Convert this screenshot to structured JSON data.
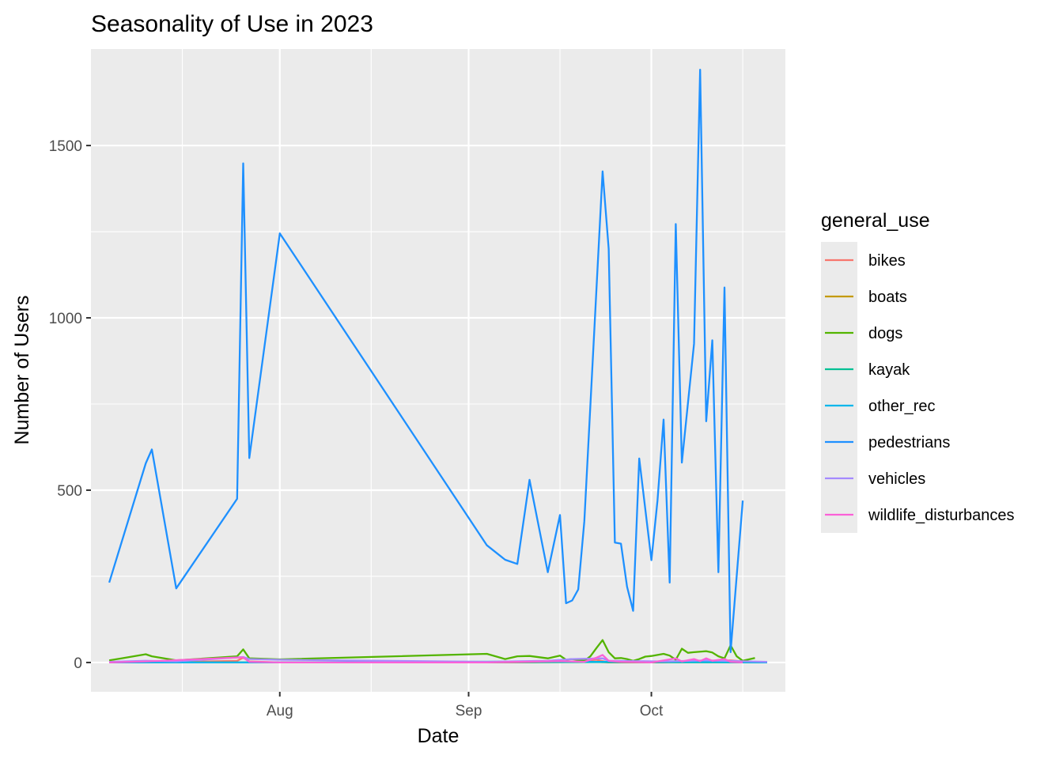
{
  "chart_data": {
    "type": "line",
    "title": "Seasonality of Use in 2023",
    "xlabel": "Date",
    "ylabel": "Number of Users",
    "x_ticks": [
      {
        "date": "2023-08-01",
        "label": "Aug"
      },
      {
        "date": "2023-09-01",
        "label": "Sep"
      },
      {
        "date": "2023-10-01",
        "label": "Oct"
      }
    ],
    "y_ticks": [
      0,
      500,
      1000,
      1500
    ],
    "xlim": [
      "2023-07-01",
      "2023-10-23"
    ],
    "ylim": [
      -85,
      1780
    ],
    "grid": true,
    "legend": {
      "title": "general_use",
      "position": "right"
    },
    "series": [
      {
        "name": "bikes",
        "color": "#F8766D",
        "points": [
          [
            "2023-07-04",
            0
          ],
          [
            "2023-07-10",
            2
          ],
          [
            "2023-07-15",
            1
          ],
          [
            "2023-07-25",
            5
          ],
          [
            "2023-07-26",
            14
          ],
          [
            "2023-07-27",
            3
          ],
          [
            "2023-08-01",
            0
          ],
          [
            "2023-09-04",
            0
          ],
          [
            "2023-09-12",
            1
          ],
          [
            "2023-09-18",
            3
          ],
          [
            "2023-09-22",
            8
          ],
          [
            "2023-09-24",
            0
          ],
          [
            "2023-10-03",
            0
          ],
          [
            "2023-10-05",
            3
          ],
          [
            "2023-10-08",
            5
          ],
          [
            "2023-10-11",
            4
          ],
          [
            "2023-10-14",
            6
          ],
          [
            "2023-10-17",
            2
          ],
          [
            "2023-10-20",
            0
          ]
        ]
      },
      {
        "name": "boats",
        "color": "#C49A00",
        "points": [
          [
            "2023-07-04",
            0
          ],
          [
            "2023-07-26",
            0
          ],
          [
            "2023-08-01",
            0
          ],
          [
            "2023-09-04",
            0
          ],
          [
            "2023-09-22",
            2
          ],
          [
            "2023-09-24",
            0
          ],
          [
            "2023-10-08",
            1
          ],
          [
            "2023-10-12",
            2
          ],
          [
            "2023-10-20",
            0
          ]
        ]
      },
      {
        "name": "dogs",
        "color": "#53B400",
        "points": [
          [
            "2023-07-04",
            6
          ],
          [
            "2023-07-06",
            12
          ],
          [
            "2023-07-10",
            24
          ],
          [
            "2023-07-11",
            18
          ],
          [
            "2023-07-15",
            6
          ],
          [
            "2023-07-25",
            18
          ],
          [
            "2023-07-26",
            38
          ],
          [
            "2023-07-27",
            12
          ],
          [
            "2023-08-01",
            9
          ],
          [
            "2023-09-04",
            25
          ],
          [
            "2023-09-07",
            10
          ],
          [
            "2023-09-09",
            18
          ],
          [
            "2023-09-11",
            19
          ],
          [
            "2023-09-14",
            12
          ],
          [
            "2023-09-16",
            20
          ],
          [
            "2023-09-17",
            8
          ],
          [
            "2023-09-18",
            10
          ],
          [
            "2023-09-19",
            8
          ],
          [
            "2023-09-20",
            5
          ],
          [
            "2023-09-21",
            18
          ],
          [
            "2023-09-22",
            42
          ],
          [
            "2023-09-23",
            65
          ],
          [
            "2023-09-24",
            30
          ],
          [
            "2023-09-25",
            12
          ],
          [
            "2023-09-26",
            13
          ],
          [
            "2023-09-27",
            10
          ],
          [
            "2023-09-28",
            5
          ],
          [
            "2023-09-29",
            10
          ],
          [
            "2023-09-30",
            17
          ],
          [
            "2023-10-01",
            19
          ],
          [
            "2023-10-02",
            22
          ],
          [
            "2023-10-03",
            25
          ],
          [
            "2023-10-04",
            20
          ],
          [
            "2023-10-05",
            8
          ],
          [
            "2023-10-06",
            40
          ],
          [
            "2023-10-07",
            28
          ],
          [
            "2023-10-08",
            30
          ],
          [
            "2023-10-10",
            33
          ],
          [
            "2023-10-11",
            29
          ],
          [
            "2023-10-12",
            18
          ],
          [
            "2023-10-13",
            12
          ],
          [
            "2023-10-14",
            50
          ],
          [
            "2023-10-15",
            18
          ],
          [
            "2023-10-16",
            5
          ],
          [
            "2023-10-18",
            13
          ]
        ]
      },
      {
        "name": "kayak",
        "color": "#00C094",
        "points": [
          [
            "2023-07-04",
            0
          ],
          [
            "2023-08-01",
            0
          ],
          [
            "2023-09-22",
            1
          ],
          [
            "2023-10-20",
            0
          ]
        ]
      },
      {
        "name": "other_rec",
        "color": "#00B6EB",
        "points": [
          [
            "2023-07-04",
            0
          ],
          [
            "2023-08-01",
            0
          ],
          [
            "2023-09-15",
            3
          ],
          [
            "2023-09-22",
            2
          ],
          [
            "2023-10-10",
            2
          ],
          [
            "2023-10-20",
            0
          ]
        ]
      },
      {
        "name": "pedestrians",
        "color": "#1E90FF",
        "points": [
          [
            "2023-07-04",
            232
          ],
          [
            "2023-07-10",
            578
          ],
          [
            "2023-07-11",
            618
          ],
          [
            "2023-07-15",
            215
          ],
          [
            "2023-07-25",
            475
          ],
          [
            "2023-07-26",
            1448
          ],
          [
            "2023-07-27",
            593
          ],
          [
            "2023-08-01",
            1245
          ],
          [
            "2023-09-04",
            340
          ],
          [
            "2023-09-07",
            298
          ],
          [
            "2023-09-09",
            286
          ],
          [
            "2023-09-11",
            530
          ],
          [
            "2023-09-14",
            262
          ],
          [
            "2023-09-16",
            428
          ],
          [
            "2023-09-17",
            172
          ],
          [
            "2023-09-18",
            180
          ],
          [
            "2023-09-19",
            212
          ],
          [
            "2023-09-20",
            410
          ],
          [
            "2023-09-23",
            1425
          ],
          [
            "2023-09-24",
            1200
          ],
          [
            "2023-09-25",
            348
          ],
          [
            "2023-09-26",
            345
          ],
          [
            "2023-09-27",
            220
          ],
          [
            "2023-09-28",
            150
          ],
          [
            "2023-09-29",
            592
          ],
          [
            "2023-10-01",
            297
          ],
          [
            "2023-10-02",
            470
          ],
          [
            "2023-10-03",
            705
          ],
          [
            "2023-10-04",
            232
          ],
          [
            "2023-10-05",
            1272
          ],
          [
            "2023-10-06",
            580
          ],
          [
            "2023-10-08",
            925
          ],
          [
            "2023-10-09",
            1720
          ],
          [
            "2023-10-10",
            700
          ],
          [
            "2023-10-11",
            935
          ],
          [
            "2023-10-12",
            262
          ],
          [
            "2023-10-13",
            1088
          ],
          [
            "2023-10-14",
            30
          ],
          [
            "2023-10-16",
            470
          ]
        ]
      },
      {
        "name": "vehicles",
        "color": "#A58AFF",
        "points": [
          [
            "2023-07-04",
            2
          ],
          [
            "2023-07-10",
            5
          ],
          [
            "2023-07-15",
            3
          ],
          [
            "2023-07-26",
            16
          ],
          [
            "2023-07-27",
            10
          ],
          [
            "2023-08-01",
            8
          ],
          [
            "2023-09-04",
            2
          ],
          [
            "2023-09-14",
            5
          ],
          [
            "2023-09-18",
            10
          ],
          [
            "2023-09-23",
            12
          ],
          [
            "2023-09-24",
            5
          ],
          [
            "2023-10-03",
            3
          ],
          [
            "2023-10-10",
            6
          ],
          [
            "2023-10-20",
            2
          ]
        ]
      },
      {
        "name": "wildlife_disturbances",
        "color": "#FB61D7",
        "points": [
          [
            "2023-07-04",
            0
          ],
          [
            "2023-07-10",
            3
          ],
          [
            "2023-07-26",
            15
          ],
          [
            "2023-07-27",
            2
          ],
          [
            "2023-08-01",
            0
          ],
          [
            "2023-09-04",
            0
          ],
          [
            "2023-09-16",
            4
          ],
          [
            "2023-09-20",
            2
          ],
          [
            "2023-09-22",
            14
          ],
          [
            "2023-09-23",
            22
          ],
          [
            "2023-09-24",
            5
          ],
          [
            "2023-09-26",
            2
          ],
          [
            "2023-10-01",
            0
          ],
          [
            "2023-10-05",
            12
          ],
          [
            "2023-10-06",
            3
          ],
          [
            "2023-10-08",
            10
          ],
          [
            "2023-10-09",
            4
          ],
          [
            "2023-10-10",
            12
          ],
          [
            "2023-10-11",
            5
          ],
          [
            "2023-10-13",
            10
          ],
          [
            "2023-10-14",
            2
          ],
          [
            "2023-10-16",
            0
          ]
        ]
      }
    ]
  }
}
